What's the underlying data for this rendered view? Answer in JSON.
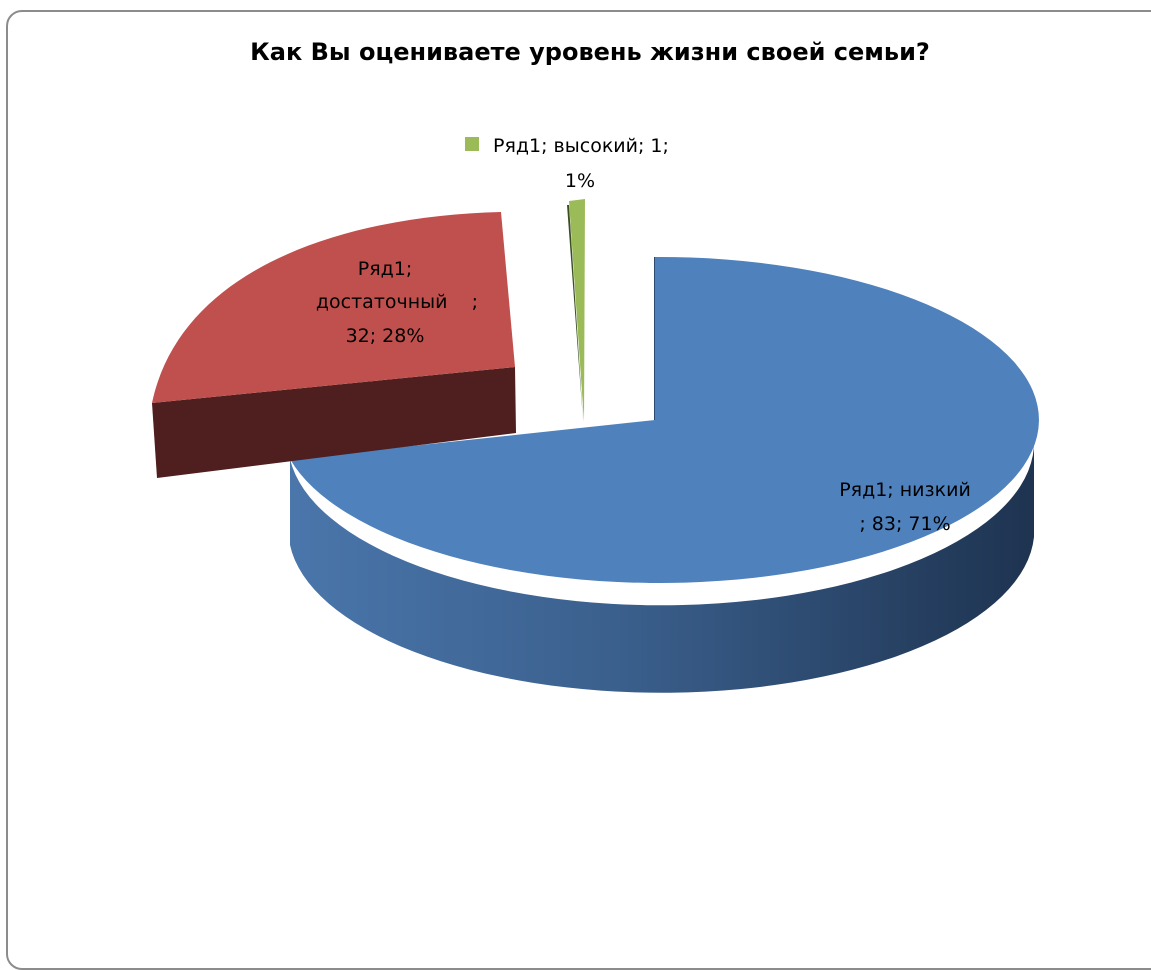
{
  "chart_data": {
    "type": "pie",
    "title": "Как Вы оцениваете уровень жизни своей семьи?",
    "series_name": "Ряд1",
    "slices": [
      {
        "category": "низкий",
        "value": 83,
        "percent": "71%",
        "color": "#4F81BD",
        "label_lines": [
          "Ряд1; низкий",
          "; 83; 71%"
        ]
      },
      {
        "category": "достаточный",
        "value": 32,
        "percent": "28%",
        "color": "#C0504D",
        "label_lines": [
          "Ряд1;",
          "достаточный    ;",
          "32; 28%"
        ]
      },
      {
        "category": "высокий",
        "value": 1,
        "percent": "1%",
        "color": "#9BBB59",
        "label_lines": [
          "Ряд1; высокий; 1;",
          "1%"
        ]
      }
    ],
    "style": "3d-exploded"
  }
}
